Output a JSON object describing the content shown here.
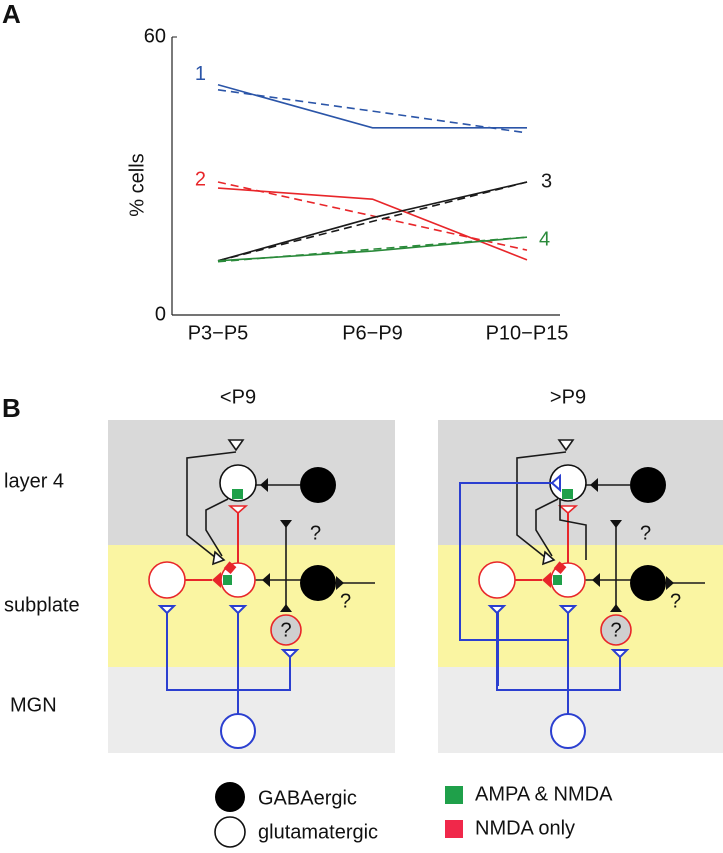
{
  "chart_data": {
    "type": "line",
    "panel_label": "A",
    "ylabel": "% cells",
    "categories": [
      "P3−P5",
      "P6−P9",
      "P10−P15"
    ],
    "ylim": [
      0,
      60
    ],
    "yticks": [
      0,
      60
    ],
    "grid": false,
    "series": [
      {
        "name": "1",
        "color": "#2b55a8",
        "values": [
          49.7,
          40.4,
          40.4
        ]
      },
      {
        "name": "2",
        "color": "#e8262a",
        "values": [
          27.4,
          25.0,
          11.9
        ]
      },
      {
        "name": "3",
        "color": "#1a1a1a",
        "values": [
          11.7,
          21.0,
          28.7
        ]
      },
      {
        "name": "4",
        "color": "#2a8a3a",
        "values": [
          11.7,
          13.8,
          16.8
        ]
      }
    ],
    "fits": [
      {
        "color": "#2b55a8",
        "values": [
          48.6,
          44.0,
          39.3
        ]
      },
      {
        "color": "#e8262a",
        "values": [
          28.7,
          21.4,
          14.0
        ]
      },
      {
        "color": "#1a1a1a",
        "values": [
          11.7,
          20.2,
          28.7
        ]
      },
      {
        "color": "#2a8a3a",
        "values": [
          11.5,
          14.2,
          16.8
        ]
      }
    ]
  },
  "diagram": {
    "panel_label": "B",
    "rows": [
      "layer 4",
      "subplate",
      "MGN"
    ],
    "panels": [
      {
        "title": "<P9",
        "marks": [
          "?",
          "?",
          "?"
        ]
      },
      {
        "title": ">P9",
        "marks": [
          "?",
          "?",
          "?"
        ]
      }
    ],
    "legend": [
      "GABAergic",
      "glutamatergic",
      "AMPA & NMDA",
      "NMDA only"
    ]
  }
}
